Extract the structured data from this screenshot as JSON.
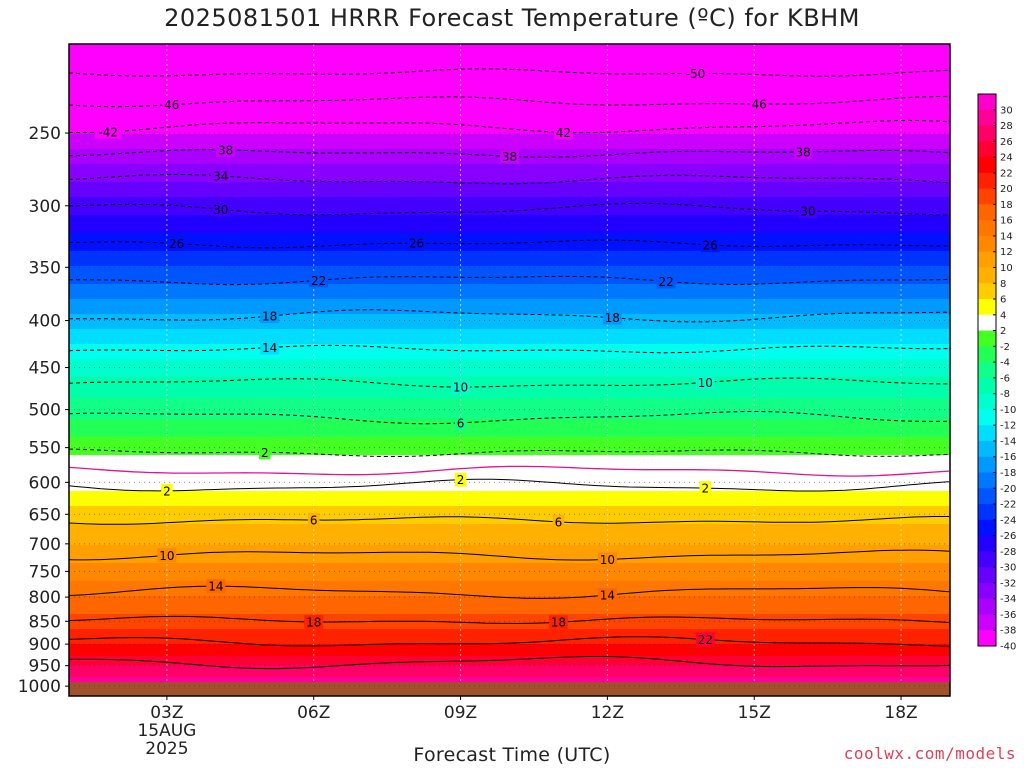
{
  "title": "2025081501 HRRR Forecast Temperature (ºC) for KBHM",
  "x_axis_label": "Forecast Time (UTC)",
  "credit": "coolwx.com/models",
  "chart_data": {
    "type": "heatmap",
    "title": "2025081501 HRRR Forecast Temperature (ºC) for KBHM",
    "xlabel": "Forecast Time (UTC)",
    "ylabel": "",
    "x_range_hours": [
      0,
      18
    ],
    "x_ticks": [
      {
        "hour": 2,
        "label": "03Z",
        "date_line1": "15AUG",
        "date_line2": "2025"
      },
      {
        "hour": 5,
        "label": "06Z"
      },
      {
        "hour": 8,
        "label": "09Z"
      },
      {
        "hour": 11,
        "label": "12Z"
      },
      {
        "hour": 14,
        "label": "15Z"
      },
      {
        "hour": 17,
        "label": "18Z"
      }
    ],
    "y_axis": "pressure (hPa), log scale, inverted",
    "y_ticks": [
      250,
      300,
      350,
      400,
      450,
      500,
      550,
      600,
      650,
      700,
      750,
      800,
      850,
      900,
      950,
      1000
    ],
    "surface_pressure_hpa": 990,
    "temperature_profile": [
      {
        "p": 1000,
        "t": 28
      },
      {
        "p": 950,
        "t": 24
      },
      {
        "p": 900,
        "t": 20
      },
      {
        "p": 850,
        "t": 17
      },
      {
        "p": 800,
        "t": 14
      },
      {
        "p": 750,
        "t": 11
      },
      {
        "p": 700,
        "t": 8
      },
      {
        "p": 650,
        "t": 5
      },
      {
        "p": 600,
        "t": 1
      },
      {
        "p": 575,
        "t": -1
      },
      {
        "p": 550,
        "t": -3
      },
      {
        "p": 500,
        "t": -7
      },
      {
        "p": 450,
        "t": -11
      },
      {
        "p": 400,
        "t": -17
      },
      {
        "p": 350,
        "t": -24
      },
      {
        "p": 300,
        "t": -31
      },
      {
        "p": 250,
        "t": -40
      },
      {
        "p": 215,
        "t": -50
      }
    ],
    "contours": [
      {
        "value": -50,
        "p": 215,
        "dashed": true,
        "labels": [
          {
            "hour": 12.8,
            "text": "-50"
          }
        ]
      },
      {
        "value": -46,
        "p": 231,
        "dashed": true,
        "labels": [
          {
            "hour": 2.1,
            "text": "46"
          },
          {
            "hour": 14.1,
            "text": "46"
          }
        ]
      },
      {
        "value": -42,
        "p": 246,
        "dashed": true,
        "labels": [
          {
            "hour": 0.8,
            "text": "-42"
          },
          {
            "hour": 10.1,
            "text": "42"
          }
        ]
      },
      {
        "value": -38,
        "p": 263,
        "dashed": true,
        "labels": [
          {
            "hour": 3.2,
            "text": "38"
          },
          {
            "hour": 9.0,
            "text": "38"
          },
          {
            "hour": 15.0,
            "text": "38"
          }
        ]
      },
      {
        "value": -34,
        "p": 281,
        "dashed": true,
        "labels": [
          {
            "hour": 3.1,
            "text": "34"
          }
        ]
      },
      {
        "value": -30,
        "p": 303,
        "dashed": true,
        "labels": [
          {
            "hour": 3.1,
            "text": "30"
          },
          {
            "hour": 15.1,
            "text": "30"
          }
        ]
      },
      {
        "value": -26,
        "p": 330,
        "dashed": true,
        "labels": [
          {
            "hour": 2.2,
            "text": "26"
          },
          {
            "hour": 7.1,
            "text": "26"
          },
          {
            "hour": 13.1,
            "text": "26"
          }
        ]
      },
      {
        "value": -22,
        "p": 361,
        "dashed": true,
        "labels": [
          {
            "hour": 5.1,
            "text": "22"
          },
          {
            "hour": 12.2,
            "text": "22"
          }
        ]
      },
      {
        "value": -18,
        "p": 395,
        "dashed": true,
        "labels": [
          {
            "hour": 4.1,
            "text": "18"
          },
          {
            "hour": 11.1,
            "text": "18"
          }
        ]
      },
      {
        "value": -14,
        "p": 430,
        "dashed": true,
        "labels": [
          {
            "hour": 4.1,
            "text": "14"
          }
        ]
      },
      {
        "value": -10,
        "p": 468,
        "dashed": true,
        "labels": [
          {
            "hour": 8.0,
            "text": "10"
          },
          {
            "hour": 13.0,
            "text": "10"
          }
        ]
      },
      {
        "value": -6,
        "p": 510,
        "dashed": true,
        "labels": [
          {
            "hour": 8.0,
            "text": "6"
          }
        ]
      },
      {
        "value": -2,
        "p": 557,
        "dashed": true,
        "labels": [
          {
            "hour": 4.0,
            "text": "2"
          }
        ]
      },
      {
        "value": 0,
        "p": 583,
        "dashed": false,
        "color": "#e0148c",
        "labels": []
      },
      {
        "value": 2,
        "p": 605,
        "dashed": false,
        "labels": [
          {
            "hour": 2.0,
            "text": "2"
          },
          {
            "hour": 8.0,
            "text": "2"
          },
          {
            "hour": 13.0,
            "text": "2"
          }
        ]
      },
      {
        "value": 6,
        "p": 660,
        "dashed": false,
        "labels": [
          {
            "hour": 5.0,
            "text": "6"
          },
          {
            "hour": 10.0,
            "text": "6"
          }
        ]
      },
      {
        "value": 10,
        "p": 720,
        "dashed": false,
        "labels": [
          {
            "hour": 2.0,
            "text": "10"
          },
          {
            "hour": 11.0,
            "text": "10"
          }
        ]
      },
      {
        "value": 14,
        "p": 790,
        "dashed": false,
        "labels": [
          {
            "hour": 3.0,
            "text": "14"
          },
          {
            "hour": 11.0,
            "text": "14"
          }
        ]
      },
      {
        "value": 18,
        "p": 848,
        "dashed": false,
        "labels": [
          {
            "hour": 5.0,
            "text": "18"
          },
          {
            "hour": 10.0,
            "text": "18"
          }
        ]
      },
      {
        "value": 22,
        "p": 895,
        "dashed": false,
        "labels": [
          {
            "hour": 13.0,
            "text": "22"
          }
        ]
      },
      {
        "value": 26,
        "p": 942,
        "dashed": false,
        "labels": []
      }
    ],
    "colorbar": {
      "ticks": [
        "30",
        "28",
        "26",
        "24",
        "22",
        "20",
        "18",
        "16",
        "14",
        "12",
        "10",
        "8",
        "6",
        "4",
        "2",
        "-2",
        "-4",
        "-6",
        "-8",
        "-10",
        "-12",
        "-14",
        "-16",
        "-18",
        "-20",
        "-22",
        "-24",
        "-26",
        "-28",
        "-30",
        "-32",
        "-34",
        "-36",
        "-38",
        "-40"
      ],
      "bands": [
        {
          "from": 28,
          "to": 32,
          "color": "#ff00cc"
        },
        {
          "from": 26,
          "to": 28,
          "color": "#ff0099"
        },
        {
          "from": 24,
          "to": 26,
          "color": "#ff0066"
        },
        {
          "from": 22,
          "to": 24,
          "color": "#ff0033"
        },
        {
          "from": 20,
          "to": 22,
          "color": "#ff0000"
        },
        {
          "from": 18,
          "to": 20,
          "color": "#ff2200"
        },
        {
          "from": 16,
          "to": 18,
          "color": "#ff4400"
        },
        {
          "from": 14,
          "to": 16,
          "color": "#ff6600"
        },
        {
          "from": 12,
          "to": 14,
          "color": "#ff7700"
        },
        {
          "from": 10,
          "to": 12,
          "color": "#ff8800"
        },
        {
          "from": 8,
          "to": 10,
          "color": "#ffa000"
        },
        {
          "from": 6,
          "to": 8,
          "color": "#ffb000"
        },
        {
          "from": 4,
          "to": 6,
          "color": "#ffcc00"
        },
        {
          "from": 2,
          "to": 4,
          "color": "#ffff00"
        },
        {
          "from": -2,
          "to": 2,
          "color": "#ffffff"
        },
        {
          "from": -4,
          "to": -2,
          "color": "#44ff22"
        },
        {
          "from": -6,
          "to": -4,
          "color": "#22ff55"
        },
        {
          "from": -8,
          "to": -6,
          "color": "#11ff88"
        },
        {
          "from": -10,
          "to": -8,
          "color": "#00ffaa"
        },
        {
          "from": -12,
          "to": -10,
          "color": "#00ffcc"
        },
        {
          "from": -14,
          "to": -12,
          "color": "#00ffee"
        },
        {
          "from": -16,
          "to": -14,
          "color": "#00ddff"
        },
        {
          "from": -18,
          "to": -16,
          "color": "#00bbff"
        },
        {
          "from": -20,
          "to": -18,
          "color": "#0099ff"
        },
        {
          "from": -22,
          "to": -20,
          "color": "#0077ff"
        },
        {
          "from": -24,
          "to": -22,
          "color": "#0055ff"
        },
        {
          "from": -26,
          "to": -24,
          "color": "#0033ff"
        },
        {
          "from": -28,
          "to": -26,
          "color": "#0011ff"
        },
        {
          "from": -30,
          "to": -28,
          "color": "#2200ff"
        },
        {
          "from": -32,
          "to": -30,
          "color": "#4400ff"
        },
        {
          "from": -34,
          "to": -32,
          "color": "#6600ff"
        },
        {
          "from": -36,
          "to": -34,
          "color": "#8800ff"
        },
        {
          "from": -38,
          "to": -36,
          "color": "#aa00ff"
        },
        {
          "from": -40,
          "to": -38,
          "color": "#cc00ff"
        },
        {
          "from": -60,
          "to": -40,
          "color": "#ff00ff"
        }
      ]
    },
    "ground_color": "#a0522d",
    "gridlines": true
  }
}
